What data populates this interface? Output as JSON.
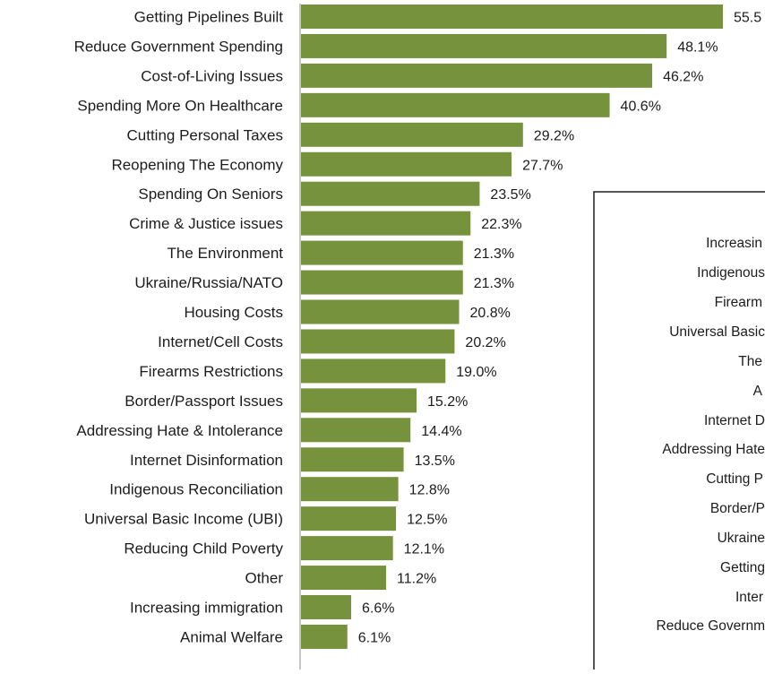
{
  "chart_data": {
    "type": "bar",
    "orientation": "horizontal",
    "title": "",
    "xlabel": "",
    "ylabel": "",
    "xlim": [
      0,
      60
    ],
    "grid": false,
    "legend": "none",
    "bar_color": "#76923c",
    "categories": [
      "Getting Pipelines Built",
      "Reduce Government Spending",
      "Cost-of-Living Issues",
      "Spending More On Healthcare",
      "Cutting Personal Taxes",
      "Reopening The Economy",
      "Spending On Seniors",
      "Crime & Justice issues",
      "The Environment",
      "Ukraine/Russia/NATO",
      "Housing Costs",
      "Internet/Cell Costs",
      "Firearms Restrictions",
      "Border/Passport Issues",
      "Addressing Hate & Intolerance",
      "Internet Disinformation",
      "Indigenous Reconciliation",
      "Universal Basic Income (UBI)",
      "Reducing Child Poverty",
      "Other",
      "Increasing immigration",
      "Animal Welfare"
    ],
    "values": [
      55.5,
      48.1,
      46.2,
      40.6,
      29.2,
      27.7,
      23.5,
      22.3,
      21.3,
      21.3,
      20.8,
      20.2,
      19.0,
      15.2,
      14.4,
      13.5,
      12.8,
      12.5,
      12.1,
      11.2,
      6.6,
      6.1
    ],
    "value_labels": [
      "55.5",
      "48.1%",
      "46.2%",
      "40.6%",
      "29.2%",
      "27.7%",
      "23.5%",
      "22.3%",
      "21.3%",
      "21.3%",
      "20.8%",
      "20.2%",
      "19.0%",
      "15.2%",
      "14.4%",
      "13.5%",
      "12.8%",
      "12.5%",
      "12.1%",
      "11.2%",
      "6.6%",
      "6.1%"
    ]
  },
  "inset_chart": {
    "partial_labels": [
      "Increasin",
      "Indigenous",
      "Firearm",
      "Universal Basic",
      "The",
      "A",
      "Internet D",
      "Addressing Hate",
      "Cutting P",
      "Border/P",
      "Ukraine",
      "Getting",
      "Inter",
      "Reduce Governm"
    ]
  }
}
